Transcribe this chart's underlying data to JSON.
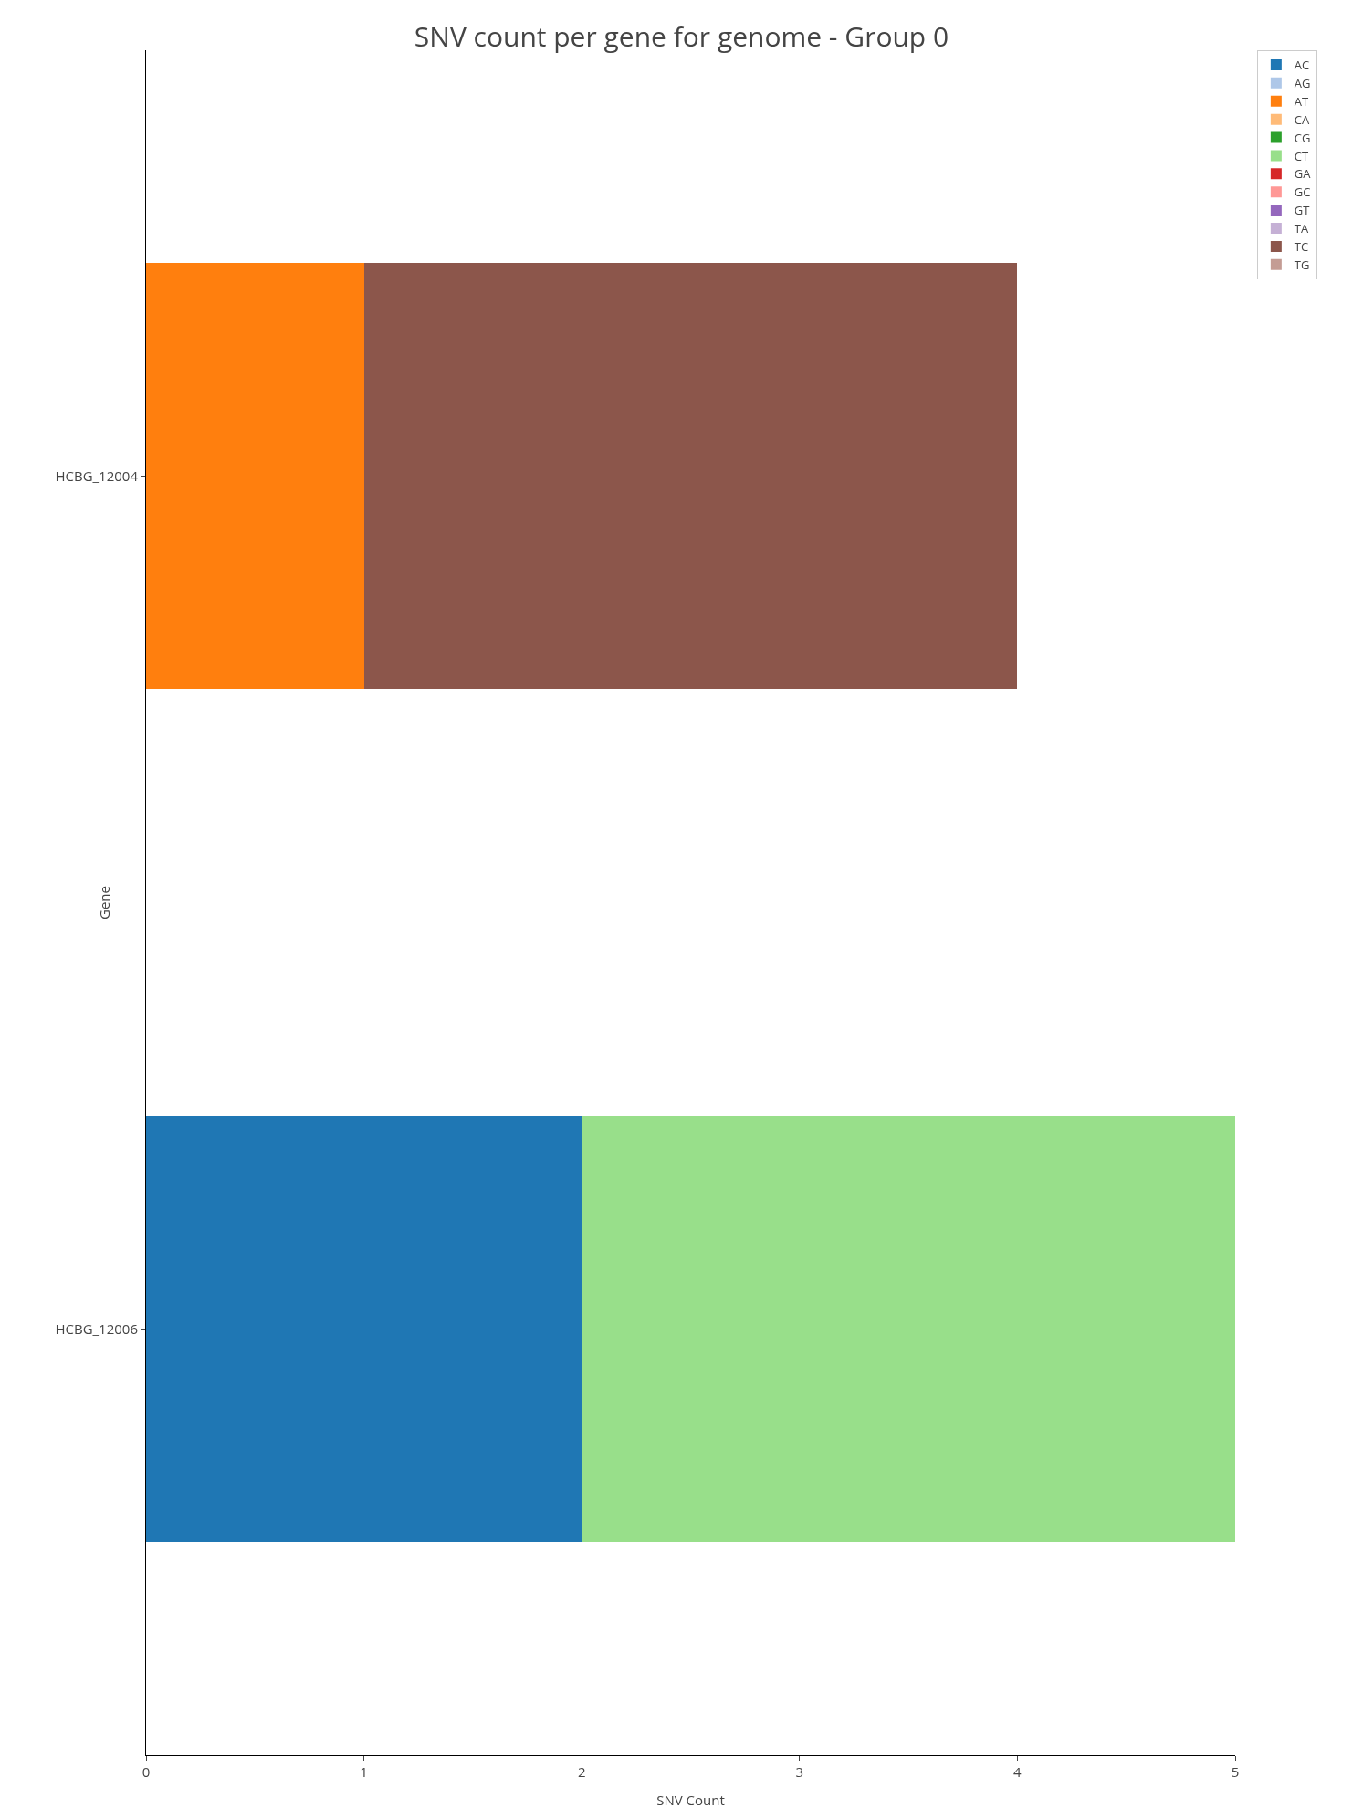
{
  "chart_data": {
    "type": "bar",
    "title": "SNV count per gene for genome - Group 0",
    "xlabel": "SNV Count",
    "ylabel": "Gene",
    "orientation": "horizontal",
    "stacked": true,
    "categories": [
      "HCBG_12004",
      "HCBG_12006"
    ],
    "series": [
      {
        "name": "AC",
        "color": "#1f77b4",
        "values": [
          0,
          2
        ]
      },
      {
        "name": "AG",
        "color": "#aec7e8",
        "values": [
          0,
          0
        ]
      },
      {
        "name": "AT",
        "color": "#ff7f0e",
        "values": [
          1,
          0
        ]
      },
      {
        "name": "CA",
        "color": "#ffbb78",
        "values": [
          0,
          0
        ]
      },
      {
        "name": "CG",
        "color": "#2ca02c",
        "values": [
          0,
          0
        ]
      },
      {
        "name": "CT",
        "color": "#98df8a",
        "values": [
          0,
          3
        ]
      },
      {
        "name": "GA",
        "color": "#d62728",
        "values": [
          0,
          0
        ]
      },
      {
        "name": "GC",
        "color": "#ff9896",
        "values": [
          0,
          0
        ]
      },
      {
        "name": "GT",
        "color": "#9467bd",
        "values": [
          0,
          0
        ]
      },
      {
        "name": "TA",
        "color": "#c5b0d5",
        "values": [
          0,
          0
        ]
      },
      {
        "name": "TC",
        "color": "#8c564b",
        "values": [
          3,
          0
        ]
      },
      {
        "name": "TG",
        "color": "#c49c94",
        "values": [
          0,
          0
        ]
      }
    ],
    "xlim": [
      0,
      5
    ],
    "xticks": [
      0,
      1,
      2,
      3,
      4,
      5
    ],
    "grid": false,
    "legend": "top right"
  }
}
